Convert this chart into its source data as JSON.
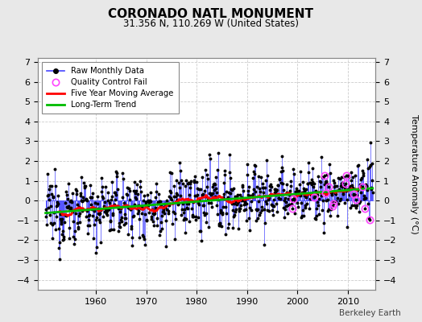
{
  "title": "CORONADO NATL MONUMENT",
  "subtitle": "31.356 N, 110.269 W (United States)",
  "ylabel": "Temperature Anomaly (°C)",
  "credit": "Berkeley Earth",
  "year_start": 1950,
  "year_end": 2014,
  "ylim": [
    -4.5,
    7.2
  ],
  "yticks": [
    -4,
    -3,
    -2,
    -1,
    0,
    1,
    2,
    3,
    4,
    5,
    6,
    7
  ],
  "bg_color": "#e8e8e8",
  "plot_bg_color": "#ffffff",
  "raw_line_color": "#4444ff",
  "raw_marker_color": "#000000",
  "qc_fail_edgecolor": "#ff44ff",
  "moving_avg_color": "#ff0000",
  "trend_color": "#00bb00",
  "seed": 12345,
  "trend_slope": 0.018,
  "noise_std": 1.15
}
